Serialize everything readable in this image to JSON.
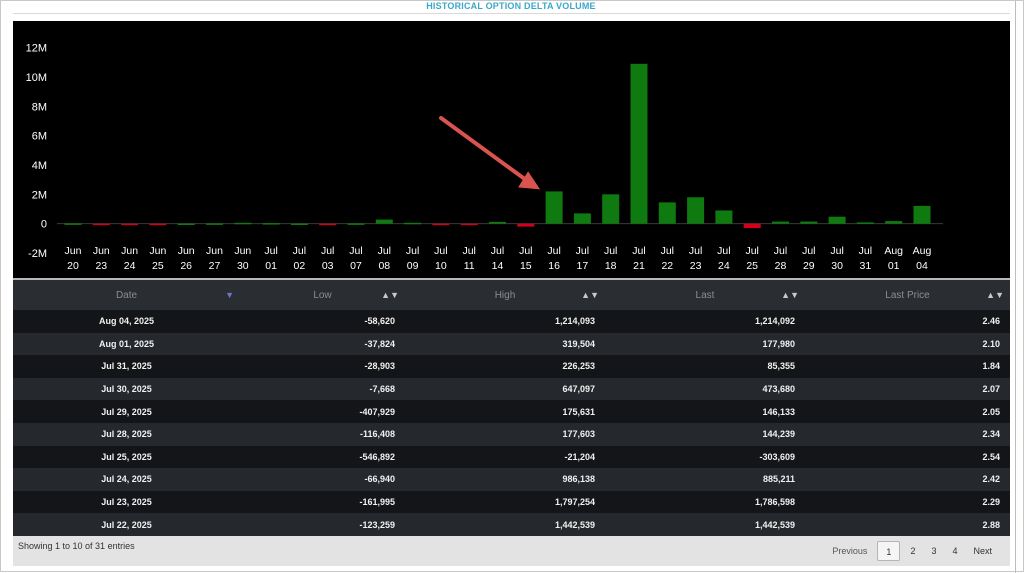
{
  "page": {
    "title": "HISTORICAL OPTION DELTA VOLUME"
  },
  "colors": {
    "positive": "#0f7a0f",
    "negative": "#d0021b",
    "axis_text": "#ffffff",
    "annotation_arrow": "#d9534f"
  },
  "chart_data": {
    "type": "bar",
    "title": "",
    "xlabel": "",
    "ylabel": "",
    "ylim": [
      -2000000,
      13000000
    ],
    "yticks": [
      -2000000,
      0,
      2000000,
      4000000,
      6000000,
      8000000,
      10000000,
      12000000
    ],
    "ytick_labels": [
      "-2M",
      "0",
      "2M",
      "4M",
      "6M",
      "8M",
      "10M",
      "12M"
    ],
    "grid": false,
    "legend": "none",
    "categories": [
      [
        "Jun",
        "20"
      ],
      [
        "Jun",
        "23"
      ],
      [
        "Jun",
        "24"
      ],
      [
        "Jun",
        "25"
      ],
      [
        "Jun",
        "26"
      ],
      [
        "Jun",
        "27"
      ],
      [
        "Jun",
        "30"
      ],
      [
        "Jul",
        "01"
      ],
      [
        "Jul",
        "02"
      ],
      [
        "Jul",
        "03"
      ],
      [
        "Jul",
        "07"
      ],
      [
        "Jul",
        "08"
      ],
      [
        "Jul",
        "09"
      ],
      [
        "Jul",
        "10"
      ],
      [
        "Jul",
        "11"
      ],
      [
        "Jul",
        "14"
      ],
      [
        "Jul",
        "15"
      ],
      [
        "Jul",
        "16"
      ],
      [
        "Jul",
        "17"
      ],
      [
        "Jul",
        "18"
      ],
      [
        "Jul",
        "21"
      ],
      [
        "Jul",
        "22"
      ],
      [
        "Jul",
        "23"
      ],
      [
        "Jul",
        "24"
      ],
      [
        "Jul",
        "25"
      ],
      [
        "Jul",
        "28"
      ],
      [
        "Jul",
        "29"
      ],
      [
        "Jul",
        "30"
      ],
      [
        "Jul",
        "31"
      ],
      [
        "Aug",
        "01"
      ],
      [
        "Aug",
        "04"
      ]
    ],
    "values": [
      20000,
      -30000,
      -60000,
      -20000,
      10000,
      20000,
      60000,
      40000,
      10000,
      -50000,
      20000,
      280000,
      60000,
      -70000,
      -80000,
      120000,
      -200000,
      2200000,
      700000,
      2000000,
      10900000,
      1450000,
      1800000,
      900000,
      -300000,
      144239,
      146133,
      473680,
      85355,
      177980,
      1214092
    ],
    "annotation": {
      "type": "arrow",
      "points_to": "Jul 16"
    }
  },
  "table": {
    "columns": [
      {
        "label": "Date"
      },
      {
        "label": "Low"
      },
      {
        "label": "High"
      },
      {
        "label": "Last"
      },
      {
        "label": "Last Price"
      }
    ],
    "sort_icons": {
      "asc_desc": "▲▼",
      "active_desc": "▼"
    },
    "rows": [
      {
        "date": "Aug 04, 2025",
        "low": "-58,620",
        "high": "1,214,093",
        "last": "1,214,092",
        "last_price": "2.46"
      },
      {
        "date": "Aug 01, 2025",
        "low": "-37,824",
        "high": "319,504",
        "last": "177,980",
        "last_price": "2.10"
      },
      {
        "date": "Jul 31, 2025",
        "low": "-28,903",
        "high": "226,253",
        "last": "85,355",
        "last_price": "1.84"
      },
      {
        "date": "Jul 30, 2025",
        "low": "-7,668",
        "high": "647,097",
        "last": "473,680",
        "last_price": "2.07"
      },
      {
        "date": "Jul 29, 2025",
        "low": "-407,929",
        "high": "175,631",
        "last": "146,133",
        "last_price": "2.05"
      },
      {
        "date": "Jul 28, 2025",
        "low": "-116,408",
        "high": "177,603",
        "last": "144,239",
        "last_price": "2.34"
      },
      {
        "date": "Jul 25, 2025",
        "low": "-546,892",
        "high": "-21,204",
        "last": "-303,609",
        "last_price": "2.54"
      },
      {
        "date": "Jul 24, 2025",
        "low": "-66,940",
        "high": "986,138",
        "last": "885,211",
        "last_price": "2.42"
      },
      {
        "date": "Jul 23, 2025",
        "low": "-161,995",
        "high": "1,797,254",
        "last": "1,786,598",
        "last_price": "2.29"
      },
      {
        "date": "Jul 22, 2025",
        "low": "-123,259",
        "high": "1,442,539",
        "last": "1,442,539",
        "last_price": "2.88"
      }
    ]
  },
  "footer": {
    "info": "Showing 1 to 10 of 31 entries",
    "pagination": {
      "previous": "Previous",
      "pages": [
        "1",
        "2",
        "3",
        "4"
      ],
      "current": "1",
      "next": "Next"
    }
  }
}
